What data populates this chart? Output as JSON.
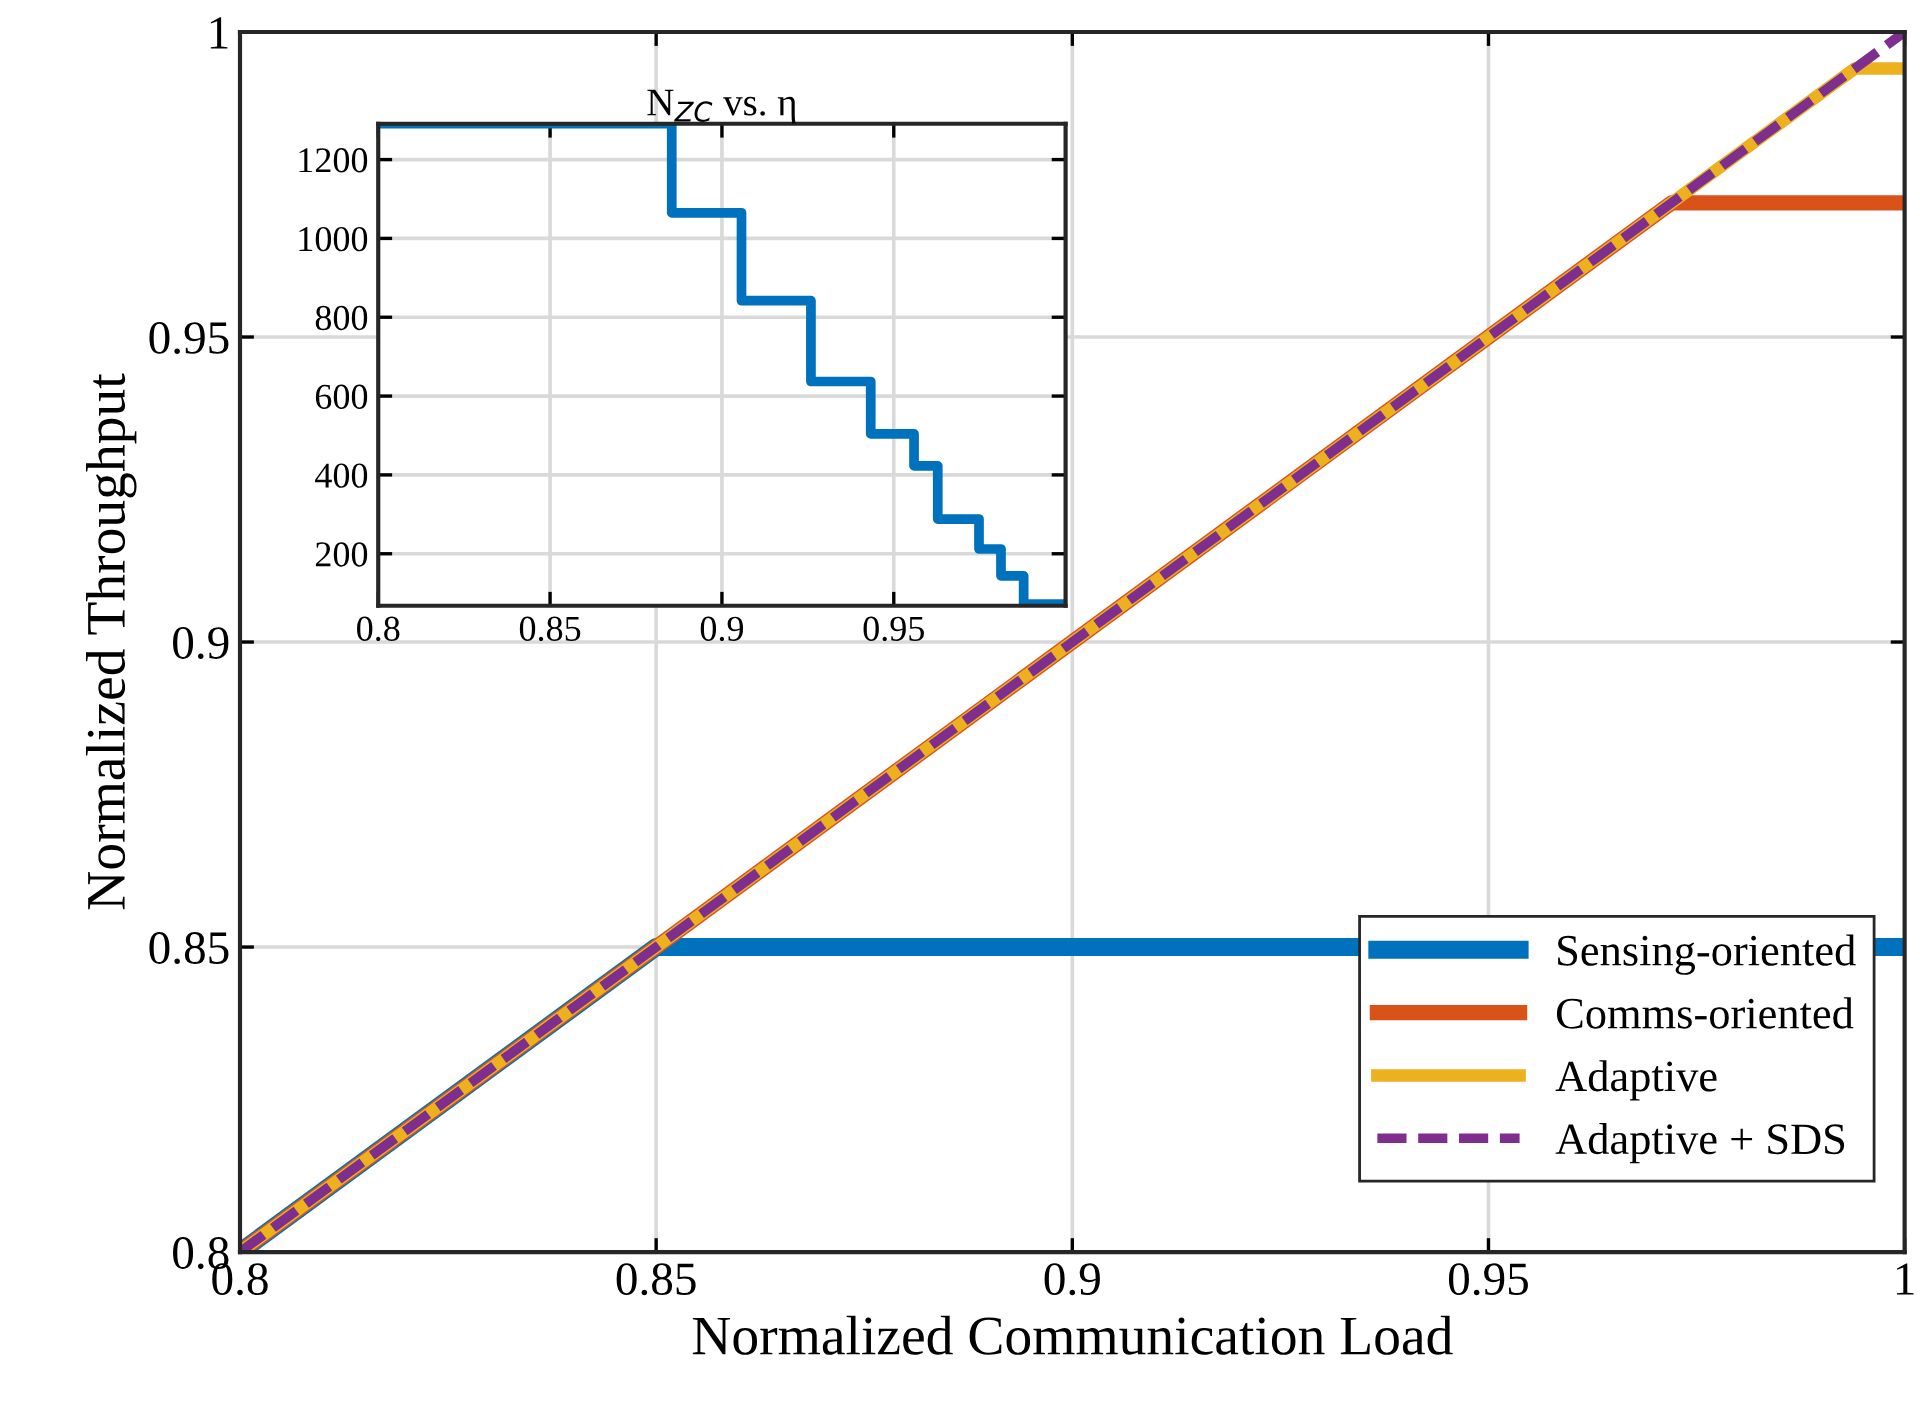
{
  "chart_data": [
    {
      "type": "line",
      "xlabel": "Normalized Communication Load",
      "ylabel": "Normalized Throughput",
      "xlim": [
        0.8,
        1
      ],
      "ylim": [
        0.8,
        1
      ],
      "xticks": [
        0.8,
        0.85,
        0.9,
        0.95,
        1
      ],
      "yticks": [
        0.8,
        0.85,
        0.9,
        0.95,
        1
      ],
      "grid": true,
      "legend": "bottom right",
      "series": [
        {
          "name": "Sensing-oriented",
          "color": "#0072bd",
          "x": [
            0.8,
            0.85,
            1
          ],
          "values": [
            0.8,
            0.85,
            0.85
          ]
        },
        {
          "name": "Comms-oriented",
          "color": "#d95319",
          "x": [
            0.8,
            0.972,
            1
          ],
          "values": [
            0.8,
            0.972,
            0.972
          ]
        },
        {
          "name": "Adaptive",
          "color": "#edb120",
          "x": [
            0.8,
            0.994,
            1
          ],
          "values": [
            0.8,
            0.994,
            0.994
          ]
        },
        {
          "name": "Adaptive + SDS",
          "color": "#7e2f8e",
          "x": [
            0.8,
            1
          ],
          "values": [
            0.8,
            1
          ],
          "line_style": "dashed"
        }
      ]
    },
    {
      "type": "step",
      "title": "N$_{ZC}$ vs. η",
      "xlim": [
        0.8,
        1
      ],
      "ylim": [
        68,
        1291
      ],
      "xticks": [
        0.8,
        0.85,
        0.9,
        0.95
      ],
      "yticks": [
        200,
        400,
        600,
        800,
        1000,
        1200
      ],
      "grid": true,
      "series": [
        {
          "color": "#0072bd",
          "x": [
            0.8,
            0.8854,
            0.9057,
            0.9259,
            0.9433,
            0.9559,
            0.9628,
            0.9748,
            0.9812,
            0.9878,
            1.0
          ],
          "values": [
            1291,
            1065,
            842,
            637,
            504,
            423,
            288,
            212,
            144,
            72,
            72
          ]
        }
      ]
    }
  ]
}
